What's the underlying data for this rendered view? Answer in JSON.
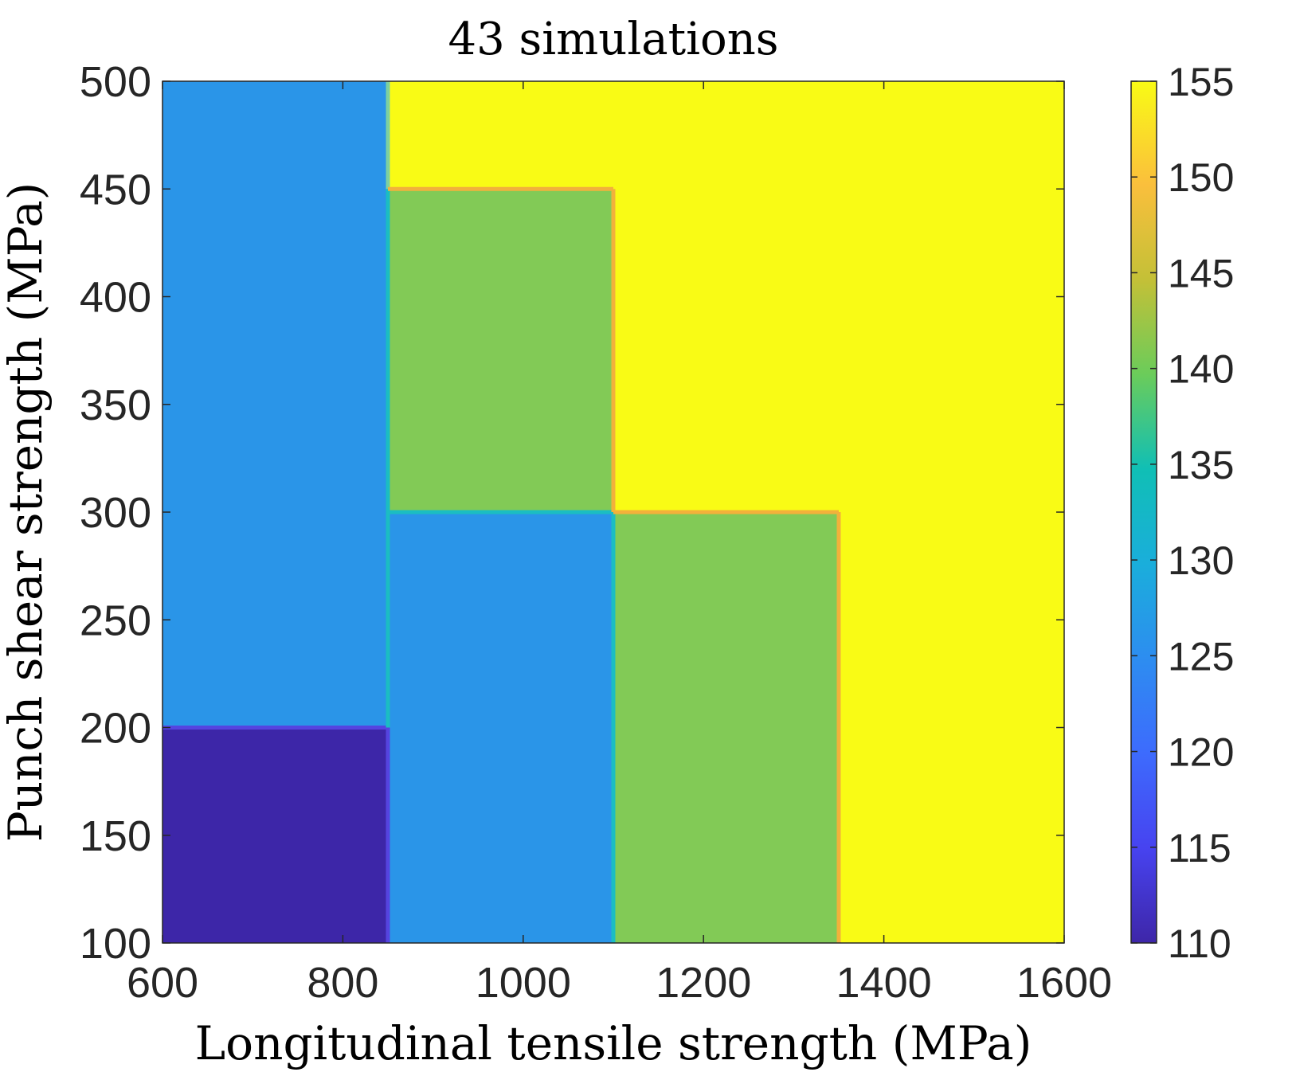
{
  "chart_data": {
    "type": "heatmap",
    "title": "43 simulations",
    "xlabel": "Longitudinal tensile strength (MPa)",
    "ylabel": "Punch shear strength (MPa)",
    "xlim": [
      600,
      1600
    ],
    "ylim": [
      100,
      500
    ],
    "xticks": [
      "600",
      "800",
      "1000",
      "1200",
      "1400",
      "1600"
    ],
    "yticks": [
      "100",
      "150",
      "200",
      "250",
      "300",
      "350",
      "400",
      "450",
      "500"
    ],
    "colorbar": {
      "range": [
        110,
        155
      ],
      "ticks": [
        "110",
        "115",
        "120",
        "125",
        "130",
        "135",
        "140",
        "145",
        "150",
        "155"
      ]
    },
    "regions": [
      {
        "x": [
          600,
          850
        ],
        "y": [
          100,
          200
        ],
        "value": 110
      },
      {
        "x": [
          600,
          850
        ],
        "y": [
          200,
          500
        ],
        "value": 125
      },
      {
        "x": [
          850,
          1100
        ],
        "y": [
          100,
          300
        ],
        "value": 125
      },
      {
        "x": [
          850,
          1100
        ],
        "y": [
          300,
          450
        ],
        "value": 140
      },
      {
        "x": [
          850,
          1100
        ],
        "y": [
          450,
          500
        ],
        "value": 155
      },
      {
        "x": [
          1100,
          1350
        ],
        "y": [
          100,
          300
        ],
        "value": 140
      },
      {
        "x": [
          1100,
          1350
        ],
        "y": [
          300,
          500
        ],
        "value": 155
      },
      {
        "x": [
          1350,
          1600
        ],
        "y": [
          100,
          500
        ],
        "value": 155
      }
    ]
  },
  "colors": {
    "v110": "#3D26A8",
    "v125": "#2A95E8",
    "v140": "#82CA56",
    "v155": "#F9FB15",
    "boundary_cyan": "#1BBDC2",
    "boundary_orange": "#F2B13B"
  }
}
